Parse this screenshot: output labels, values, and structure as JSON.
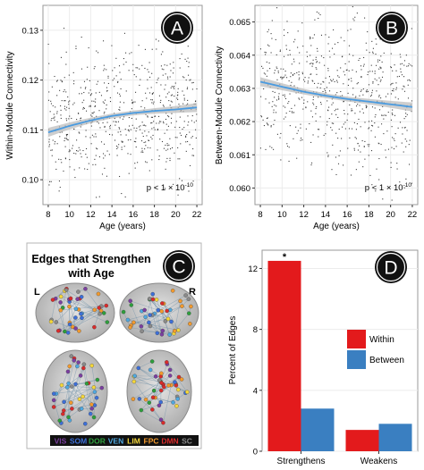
{
  "chart_data": [
    {
      "panel": "A",
      "type": "scatter",
      "xlabel": "Age (years)",
      "ylabel": "Within-Module Connectivity",
      "xlim": [
        7.5,
        22.5
      ],
      "ylim": [
        0.095,
        0.135
      ],
      "xticks": [
        8,
        10,
        12,
        14,
        16,
        18,
        20,
        22
      ],
      "yticks": [
        0.1,
        0.11,
        0.12,
        0.13
      ],
      "ytick_labels": [
        "0.10",
        "0.11",
        "0.12",
        "0.13"
      ],
      "annotation": "p < 1 × 10",
      "annotation_exp": "-10",
      "fit": {
        "x": [
          8,
          10,
          12,
          14,
          16,
          18,
          20,
          22
        ],
        "y": [
          0.1095,
          0.1108,
          0.1119,
          0.1128,
          0.1134,
          0.1138,
          0.1141,
          0.1145
        ]
      },
      "point_spread": {
        "x": [
          8,
          22
        ],
        "y_mean": 0.112,
        "y_sd": 0.0065,
        "n": 650
      },
      "grid": true,
      "badge": "A"
    },
    {
      "panel": "B",
      "type": "scatter",
      "xlabel": "Age (years)",
      "ylabel": "Between-Module Connectivity",
      "xlim": [
        7.5,
        22.5
      ],
      "ylim": [
        0.0595,
        0.0655
      ],
      "xticks": [
        8,
        10,
        12,
        14,
        16,
        18,
        20,
        22
      ],
      "yticks": [
        0.06,
        0.061,
        0.062,
        0.063,
        0.064,
        0.065
      ],
      "ytick_labels": [
        "0.060",
        "0.061",
        "0.062",
        "0.063",
        "0.064",
        "0.065"
      ],
      "annotation": "p < 1 × 10",
      "annotation_exp": "-10",
      "fit": {
        "x": [
          8,
          10,
          12,
          14,
          16,
          18,
          20,
          22
        ],
        "y": [
          0.0632,
          0.06305,
          0.0629,
          0.06278,
          0.06268,
          0.0626,
          0.06252,
          0.06244
        ]
      },
      "point_spread": {
        "x": [
          8,
          22
        ],
        "y_mean": 0.0627,
        "y_sd": 0.0011,
        "n": 650
      },
      "grid": true,
      "badge": "B"
    },
    {
      "panel": "D",
      "type": "bar",
      "ylabel": "Percent of Edges",
      "categories": [
        "Strengthens",
        "Weakens"
      ],
      "series": [
        {
          "name": "Within",
          "values": [
            12.5,
            1.4
          ],
          "color": "#e31a1c"
        },
        {
          "name": "Between",
          "values": [
            2.8,
            1.8
          ],
          "color": "#3a7fc1"
        }
      ],
      "ylim": [
        0,
        13.2
      ],
      "yticks": [
        0,
        4,
        8,
        12
      ],
      "significance_marker": "*",
      "legend_position": "right",
      "grid": true,
      "badge": "D"
    }
  ],
  "panel_c": {
    "title_line1": "Edges that Strengthen",
    "title_line2": "with Age",
    "left_label": "L",
    "right_label": "R",
    "badge": "C",
    "network_legend": [
      {
        "label": "VIS",
        "color": "#7b3fa0"
      },
      {
        "label": "SOM",
        "color": "#3d6fd8"
      },
      {
        "label": "DOR",
        "color": "#2e9e3c"
      },
      {
        "label": "VEN",
        "color": "#4fa8e0"
      },
      {
        "label": "LIM",
        "color": "#f5d73a"
      },
      {
        "label": "FPC",
        "color": "#f29a2e"
      },
      {
        "label": "DMN",
        "color": "#d92b2b"
      },
      {
        "label": "SC",
        "color": "#8a8a8a"
      }
    ]
  }
}
